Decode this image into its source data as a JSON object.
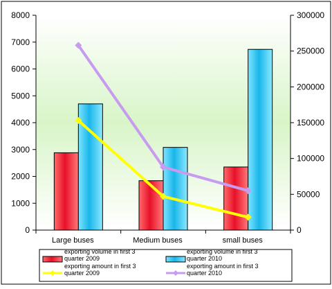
{
  "chart_data": {
    "type": "bar",
    "categories": [
      "Large buses",
      "Medium buses",
      "small buses"
    ],
    "series": [
      {
        "name": "exporting volume in first 3 quarter 2009",
        "type": "bar",
        "axis": "left",
        "values": [
          2880,
          1840,
          2350
        ]
      },
      {
        "name": "exporting volume in first 3 quarter 2010",
        "type": "bar",
        "axis": "left",
        "values": [
          4700,
          3080,
          6730
        ]
      },
      {
        "name": "exporting amount in first 3 quarter 2009",
        "type": "line",
        "axis": "right",
        "values": [
          153000,
          47000,
          18000
        ]
      },
      {
        "name": "exporting amount in first 3 quarter 2010",
        "type": "line",
        "axis": "right",
        "values": [
          258000,
          88000,
          55000
        ]
      }
    ],
    "left_axis": {
      "min": 0,
      "max": 8000,
      "ticks": [
        "0",
        "1000",
        "2000",
        "3000",
        "4000",
        "5000",
        "6000",
        "7000",
        "8000"
      ]
    },
    "right_axis": {
      "min": 0,
      "max": 300000,
      "ticks": [
        "0",
        "50000",
        "100000",
        "150000",
        "200000",
        "250000",
        "300000"
      ]
    },
    "legend": [
      {
        "label_line1": "exporting volume in first 3",
        "label_line2": "quarter 2009"
      },
      {
        "label_line1": "exporting volume in first 3",
        "label_line2": "quarter 2010"
      },
      {
        "label_line1": "exporting amount in first 3",
        "label_line2": "quarter 2009"
      },
      {
        "label_line1": "exporting amount in first 3",
        "label_line2": "quarter 2010"
      }
    ],
    "legend_position": "bottom",
    "grid": false,
    "colors": {
      "bar2009": "#e8232a",
      "bar2010": "#3ac4ec",
      "line2009": "#ffff00",
      "line2010": "#c79cf0",
      "plot_bg_top": "#ffffff",
      "plot_bg_mid": "#d8f5c8"
    }
  }
}
